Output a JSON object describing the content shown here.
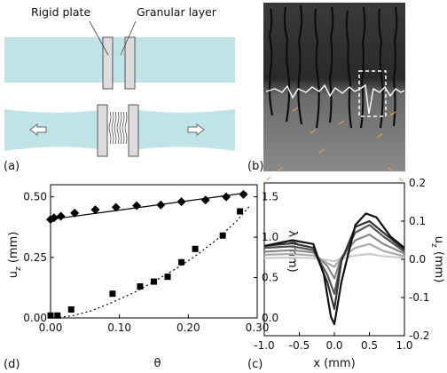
{
  "panels": {
    "a": {
      "tag": "(a)",
      "label_plate": "Rigid plate",
      "label_layer": "Granular layer",
      "colors": {
        "medium": "#bfe3e7",
        "plate": "#dcdcdc",
        "stroke": "#555555"
      },
      "icons": [
        "arrow-left-icon",
        "arrow-right-icon"
      ]
    },
    "b": {
      "tag": "(b)"
    },
    "c": {
      "tag": "(c)"
    },
    "d": {
      "tag": "(d)"
    }
  },
  "chart_data": [
    {
      "panel": "d",
      "type": "scatter",
      "xlabel": "θ",
      "ylabel_left": "u_z (mm)",
      "ylabel_left_main": "u",
      "ylabel_left_sub": "z",
      "ylabel_left_unit": "(mm)",
      "ylabel_right": "λ (mm)",
      "xlim": [
        0,
        0.3
      ],
      "ylim_left": [
        0,
        0.55
      ],
      "ylim_right": [
        0,
        1.65
      ],
      "xticks": [
        "0.00",
        "0.10",
        "0.20",
        "0.30"
      ],
      "yticks_left": [
        "0.00",
        "0.25",
        "0.50"
      ],
      "yticks_right": [
        "0.0",
        "0.5",
        "1.0",
        "1.5"
      ],
      "series": [
        {
          "marker": "diamond",
          "axis": "right",
          "fit": "linear",
          "x": [
            0.0,
            0.005,
            0.015,
            0.035,
            0.065,
            0.095,
            0.125,
            0.16,
            0.19,
            0.225,
            0.255,
            0.28
          ],
          "y": [
            1.22,
            1.24,
            1.26,
            1.3,
            1.34,
            1.37,
            1.39,
            1.4,
            1.44,
            1.46,
            1.5,
            1.53
          ],
          "fit_x": [
            0.0,
            0.285
          ],
          "fit_y": [
            1.22,
            1.55
          ]
        },
        {
          "marker": "square",
          "axis": "left",
          "fit": "quadratic",
          "x": [
            0.0,
            0.01,
            0.03,
            0.09,
            0.13,
            0.15,
            0.17,
            0.19,
            0.21,
            0.25,
            0.275
          ],
          "y": [
            0.01,
            0.01,
            0.035,
            0.1,
            0.13,
            0.15,
            0.17,
            0.23,
            0.285,
            0.34,
            0.44
          ],
          "fit_x": [
            0.0,
            0.03,
            0.06,
            0.09,
            0.12,
            0.15,
            0.18,
            0.21,
            0.24,
            0.27,
            0.29
          ],
          "fit_y": [
            0.0,
            0.008,
            0.03,
            0.065,
            0.103,
            0.15,
            0.2,
            0.255,
            0.32,
            0.4,
            0.465
          ]
        }
      ]
    },
    {
      "panel": "c",
      "type": "line",
      "xlabel": "x (mm)",
      "ylabel": "u_z (mm)",
      "ylabel_main": "u",
      "ylabel_sub": "z",
      "ylabel_unit": "(mm)",
      "xlim": [
        -1.0,
        1.0
      ],
      "ylim": [
        -0.2,
        0.2
      ],
      "xticks": [
        "-1.0",
        "-0.5",
        "0.0",
        "0.5",
        "1.0"
      ],
      "yticks": [
        "-0.2",
        "-0.1",
        "0.0",
        "0.1",
        "0.2"
      ],
      "series": [
        {
          "color": "#cccccc",
          "x": [
            -1.0,
            -0.6,
            -0.3,
            -0.1,
            0.0,
            0.1,
            0.3,
            0.5,
            0.7,
            1.0
          ],
          "y": [
            0.003,
            0.005,
            0.003,
            -0.002,
            -0.005,
            0.002,
            0.01,
            0.014,
            0.008,
            0.004
          ]
        },
        {
          "color": "#aaaaaa",
          "x": [
            -1.0,
            -0.6,
            -0.3,
            -0.1,
            0.0,
            0.1,
            0.3,
            0.5,
            0.7,
            1.0
          ],
          "y": [
            0.012,
            0.014,
            0.01,
            -0.01,
            -0.02,
            0.005,
            0.03,
            0.04,
            0.022,
            0.008
          ]
        },
        {
          "color": "#888888",
          "x": [
            -1.0,
            -0.6,
            -0.3,
            -0.1,
            0.0,
            0.1,
            0.3,
            0.5,
            0.7,
            1.0
          ],
          "y": [
            0.02,
            0.024,
            0.018,
            -0.018,
            -0.05,
            0.005,
            0.05,
            0.065,
            0.04,
            0.015
          ]
        },
        {
          "color": "#555555",
          "x": [
            -1.0,
            -0.6,
            -0.3,
            -0.1,
            0.0,
            0.1,
            0.3,
            0.5,
            0.7,
            1.0
          ],
          "y": [
            0.03,
            0.034,
            0.024,
            -0.04,
            -0.09,
            0.0,
            0.07,
            0.09,
            0.06,
            0.02
          ]
        },
        {
          "color": "#333333",
          "x": [
            -1.0,
            -0.6,
            -0.3,
            -0.1,
            0.0,
            0.1,
            0.3,
            0.5,
            0.7,
            1.0
          ],
          "y": [
            0.035,
            0.042,
            0.03,
            -0.06,
            -0.13,
            -0.005,
            0.085,
            0.1,
            0.07,
            0.025
          ]
        },
        {
          "color": "#111111",
          "x": [
            -1.0,
            -0.6,
            -0.3,
            -0.15,
            -0.05,
            0.0,
            0.1,
            0.3,
            0.45,
            0.6,
            0.8,
            1.0
          ],
          "y": [
            0.035,
            0.05,
            0.04,
            -0.04,
            -0.15,
            -0.17,
            -0.06,
            0.09,
            0.12,
            0.11,
            0.06,
            0.03
          ]
        }
      ]
    }
  ]
}
